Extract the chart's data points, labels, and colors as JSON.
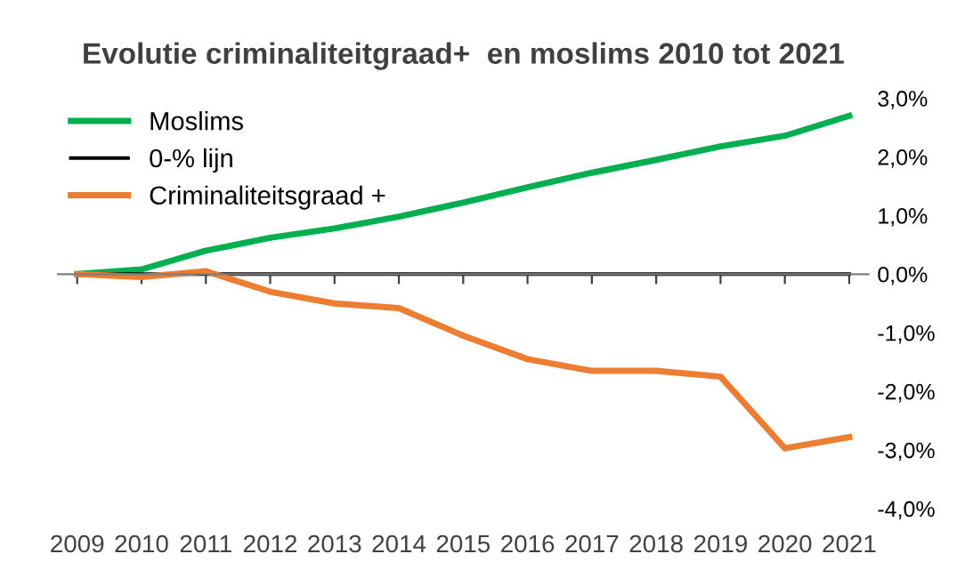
{
  "chart_data": {
    "type": "line",
    "title": "Evolutie criminaliteitgraad+  en moslims 2010 tot 2021",
    "categories": [
      "2009",
      "2010",
      "2011",
      "2012",
      "2013",
      "2014",
      "2015",
      "2016",
      "2017",
      "2018",
      "2019",
      "2020",
      "2021"
    ],
    "series": [
      {
        "name": "Moslims",
        "color": "#00b050",
        "values": [
          0,
          0.08,
          0.4,
          0.62,
          0.78,
          0.98,
          1.22,
          1.48,
          1.73,
          1.95,
          2.18,
          2.36,
          2.7
        ]
      },
      {
        "name": "0-% lijn",
        "color": "#000000",
        "values": [
          0,
          0,
          0,
          0,
          0,
          0,
          0,
          0,
          0,
          0,
          0,
          0,
          0
        ]
      },
      {
        "name": "Criminaliteitsgraad +",
        "color": "#ed7d31",
        "values": [
          0,
          -0.05,
          0.05,
          -0.3,
          -0.5,
          -0.58,
          -1.05,
          -1.45,
          -1.65,
          -1.65,
          -1.75,
          -2.97,
          -2.78
        ]
      }
    ],
    "ylim": [
      -4,
      3
    ],
    "yticks": [
      {
        "value": -4,
        "label": "-4,0%"
      },
      {
        "value": -3,
        "label": "-3,0%"
      },
      {
        "value": -2,
        "label": "-2,0%"
      },
      {
        "value": -1,
        "label": "-1,0%"
      },
      {
        "value": 0,
        "label": "0,0%"
      },
      {
        "value": 1,
        "label": "1,0%"
      },
      {
        "value": 2,
        "label": "2,0%"
      },
      {
        "value": 3,
        "label": "3,0%"
      }
    ],
    "legend": "top left",
    "marker": "none",
    "line_style": "solid"
  }
}
